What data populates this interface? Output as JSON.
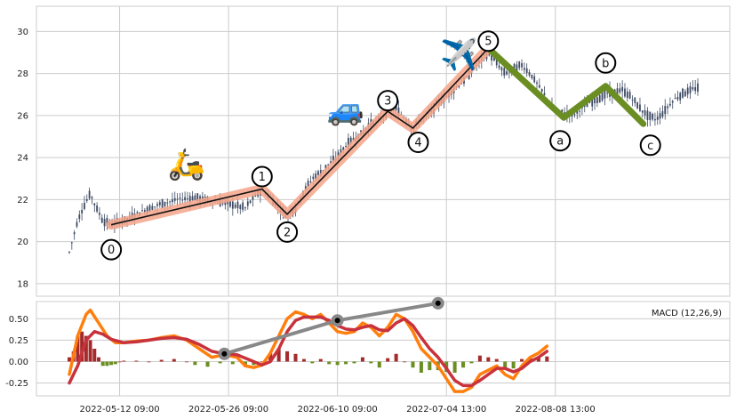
{
  "colors": {
    "grid": "#cccccc",
    "panel_bg": "#ffffff",
    "candle": "#3d4a63",
    "trend_glow": "#f4a58a",
    "trend_line": "#111111",
    "correction": "#6b8e23",
    "macd_line": "#ff7f0e",
    "signal_line": "#c8323c",
    "hist_pos": "#a52a2a",
    "hist_neg": "#6b8e23",
    "macd_trend": "#888888"
  },
  "chart_data": [
    {
      "type": "candlestick",
      "title": "",
      "xlabel": "",
      "ylabel": "",
      "ylim": [
        17.4,
        31.2
      ],
      "yticks": [
        18,
        20,
        22,
        24,
        26,
        28,
        30
      ],
      "grid": true,
      "price_series": [
        [
          0,
          19.5
        ],
        [
          2,
          21.0
        ],
        [
          3,
          21.5
        ],
        [
          5,
          22.3
        ],
        [
          6,
          21.8
        ],
        [
          8,
          21.0
        ],
        [
          10,
          20.8
        ],
        [
          14,
          21.1
        ],
        [
          18,
          21.5
        ],
        [
          22,
          21.8
        ],
        [
          26,
          22.0
        ],
        [
          30,
          22.1
        ],
        [
          34,
          21.9
        ],
        [
          38,
          21.8
        ],
        [
          42,
          21.6
        ],
        [
          44,
          22.1
        ],
        [
          46,
          22.5
        ],
        [
          48,
          22.1
        ],
        [
          50,
          21.6
        ],
        [
          52,
          21.3
        ],
        [
          54,
          21.6
        ],
        [
          56,
          22.4
        ],
        [
          58,
          23.0
        ],
        [
          60,
          23.3
        ],
        [
          62,
          23.7
        ],
        [
          64,
          24.0
        ],
        [
          66,
          24.6
        ],
        [
          68,
          24.9
        ],
        [
          70,
          25.2
        ],
        [
          72,
          25.6
        ],
        [
          74,
          25.8
        ],
        [
          76,
          26.2
        ],
        [
          78,
          26.3
        ],
        [
          80,
          25.9
        ],
        [
          82,
          25.4
        ],
        [
          84,
          25.8
        ],
        [
          86,
          26.1
        ],
        [
          88,
          26.6
        ],
        [
          90,
          26.9
        ],
        [
          92,
          27.3
        ],
        [
          94,
          27.6
        ],
        [
          96,
          28.1
        ],
        [
          98,
          28.6
        ],
        [
          100,
          29.0
        ],
        [
          102,
          28.5
        ],
        [
          104,
          28.0
        ],
        [
          106,
          28.2
        ],
        [
          108,
          28.4
        ],
        [
          110,
          28.0
        ],
        [
          112,
          27.4
        ],
        [
          114,
          26.8
        ],
        [
          116,
          26.2
        ],
        [
          118,
          26.1
        ],
        [
          120,
          26.0
        ],
        [
          122,
          26.3
        ],
        [
          124,
          26.6
        ],
        [
          126,
          26.8
        ],
        [
          128,
          27.0
        ],
        [
          130,
          27.1
        ],
        [
          132,
          27.2
        ],
        [
          134,
          26.9
        ],
        [
          136,
          26.4
        ],
        [
          138,
          26.0
        ],
        [
          140,
          25.8
        ],
        [
          142,
          26.2
        ],
        [
          144,
          26.7
        ],
        [
          146,
          27.0
        ],
        [
          148,
          27.2
        ],
        [
          150,
          27.3
        ]
      ],
      "waves": [
        {
          "label": "0",
          "x": 10,
          "y": 20.8
        },
        {
          "label": "1",
          "x": 46,
          "y": 22.5
        },
        {
          "label": "2",
          "x": 52,
          "y": 21.3
        },
        {
          "label": "3",
          "x": 76,
          "y": 26.2
        },
        {
          "label": "4",
          "x": 82,
          "y": 25.4
        },
        {
          "label": "5",
          "x": 100,
          "y": 29.2
        },
        {
          "label": "a",
          "x": 118,
          "y": 25.9
        },
        {
          "label": "b",
          "x": 128,
          "y": 27.4
        },
        {
          "label": "c",
          "x": 137,
          "y": 25.6
        }
      ],
      "icons": [
        {
          "name": "scooter-icon",
          "glyph": "🛵",
          "x": 28,
          "y": 23.2
        },
        {
          "name": "car-icon",
          "glyph": "🚙",
          "x": 66,
          "y": 25.8
        },
        {
          "name": "airplane-icon",
          "glyph": "✈️",
          "x": 93,
          "y": 28.4
        }
      ]
    },
    {
      "type": "bar+line",
      "title": "",
      "legend": "MACD (12,26,9)",
      "xlabel": "",
      "ylabel": "",
      "ylim": [
        -0.4,
        0.7
      ],
      "yticks": [
        0.5,
        0.25,
        0.0,
        -0.25
      ],
      "grid": true,
      "x_tick_labels": [
        {
          "x": 12,
          "label": "2022-05-12 09:00"
        },
        {
          "x": 38,
          "label": "2022-05-26 09:00"
        },
        {
          "x": 64,
          "label": "2022-06-10 09:00"
        },
        {
          "x": 90,
          "label": "2022-07-04 13:00"
        },
        {
          "x": 116,
          "label": "2022-08-08 13:00"
        }
      ],
      "macd_line": [
        [
          0,
          -0.15
        ],
        [
          2,
          0.3
        ],
        [
          4,
          0.55
        ],
        [
          5,
          0.6
        ],
        [
          7,
          0.45
        ],
        [
          9,
          0.3
        ],
        [
          11,
          0.22
        ],
        [
          13,
          0.22
        ],
        [
          16,
          0.24
        ],
        [
          19,
          0.25
        ],
        [
          22,
          0.28
        ],
        [
          25,
          0.3
        ],
        [
          28,
          0.25
        ],
        [
          31,
          0.15
        ],
        [
          34,
          0.05
        ],
        [
          37,
          0.08
        ],
        [
          40,
          0.05
        ],
        [
          42,
          -0.05
        ],
        [
          44,
          -0.07
        ],
        [
          46,
          -0.04
        ],
        [
          48,
          0.1
        ],
        [
          50,
          0.3
        ],
        [
          52,
          0.5
        ],
        [
          54,
          0.58
        ],
        [
          56,
          0.55
        ],
        [
          58,
          0.5
        ],
        [
          60,
          0.55
        ],
        [
          62,
          0.45
        ],
        [
          64,
          0.35
        ],
        [
          66,
          0.33
        ],
        [
          68,
          0.35
        ],
        [
          70,
          0.45
        ],
        [
          72,
          0.4
        ],
        [
          74,
          0.3
        ],
        [
          76,
          0.4
        ],
        [
          78,
          0.55
        ],
        [
          80,
          0.5
        ],
        [
          82,
          0.35
        ],
        [
          84,
          0.15
        ],
        [
          86,
          0.05
        ],
        [
          88,
          -0.05
        ],
        [
          90,
          -0.2
        ],
        [
          92,
          -0.35
        ],
        [
          94,
          -0.35
        ],
        [
          96,
          -0.3
        ],
        [
          98,
          -0.15
        ],
        [
          100,
          -0.1
        ],
        [
          102,
          -0.05
        ],
        [
          104,
          -0.15
        ],
        [
          106,
          -0.2
        ],
        [
          108,
          -0.05
        ],
        [
          110,
          0.05
        ],
        [
          112,
          0.1
        ],
        [
          114,
          0.18
        ]
      ],
      "signal_line": [
        [
          0,
          -0.25
        ],
        [
          2,
          -0.05
        ],
        [
          4,
          0.25
        ],
        [
          6,
          0.35
        ],
        [
          8,
          0.32
        ],
        [
          10,
          0.26
        ],
        [
          13,
          0.22
        ],
        [
          16,
          0.23
        ],
        [
          19,
          0.25
        ],
        [
          22,
          0.27
        ],
        [
          25,
          0.28
        ],
        [
          28,
          0.26
        ],
        [
          31,
          0.2
        ],
        [
          34,
          0.12
        ],
        [
          37,
          0.09
        ],
        [
          40,
          0.08
        ],
        [
          43,
          0.02
        ],
        [
          46,
          -0.04
        ],
        [
          48,
          0.0
        ],
        [
          50,
          0.15
        ],
        [
          52,
          0.35
        ],
        [
          54,
          0.48
        ],
        [
          56,
          0.52
        ],
        [
          58,
          0.52
        ],
        [
          60,
          0.52
        ],
        [
          62,
          0.48
        ],
        [
          64,
          0.42
        ],
        [
          66,
          0.38
        ],
        [
          68,
          0.37
        ],
        [
          70,
          0.4
        ],
        [
          72,
          0.42
        ],
        [
          74,
          0.37
        ],
        [
          76,
          0.36
        ],
        [
          78,
          0.45
        ],
        [
          80,
          0.5
        ],
        [
          82,
          0.42
        ],
        [
          84,
          0.28
        ],
        [
          86,
          0.15
        ],
        [
          88,
          0.05
        ],
        [
          90,
          -0.08
        ],
        [
          92,
          -0.22
        ],
        [
          94,
          -0.28
        ],
        [
          96,
          -0.28
        ],
        [
          98,
          -0.22
        ],
        [
          100,
          -0.15
        ],
        [
          102,
          -0.08
        ],
        [
          104,
          -0.08
        ],
        [
          106,
          -0.12
        ],
        [
          108,
          -0.08
        ],
        [
          110,
          0.0
        ],
        [
          112,
          0.05
        ],
        [
          114,
          0.12
        ]
      ],
      "histogram": [
        [
          0,
          0.05
        ],
        [
          1,
          0.12
        ],
        [
          2,
          0.3
        ],
        [
          3,
          0.35
        ],
        [
          4,
          0.3
        ],
        [
          5,
          0.25
        ],
        [
          6,
          0.15
        ],
        [
          7,
          0.05
        ],
        [
          8,
          -0.05
        ],
        [
          9,
          -0.05
        ],
        [
          10,
          -0.04
        ],
        [
          11,
          -0.03
        ],
        [
          12,
          0.0
        ],
        [
          13,
          0.01
        ],
        [
          16,
          0.01
        ],
        [
          19,
          0.0
        ],
        [
          22,
          0.02
        ],
        [
          25,
          0.03
        ],
        [
          28,
          0.0
        ],
        [
          30,
          -0.04
        ],
        [
          33,
          -0.06
        ],
        [
          36,
          -0.02
        ],
        [
          39,
          -0.03
        ],
        [
          42,
          -0.06
        ],
        [
          44,
          -0.04
        ],
        [
          46,
          0.0
        ],
        [
          48,
          0.1
        ],
        [
          50,
          0.15
        ],
        [
          52,
          0.12
        ],
        [
          54,
          0.09
        ],
        [
          56,
          0.03
        ],
        [
          58,
          -0.02
        ],
        [
          60,
          0.03
        ],
        [
          62,
          -0.03
        ],
        [
          64,
          -0.04
        ],
        [
          66,
          -0.03
        ],
        [
          68,
          -0.02
        ],
        [
          70,
          0.05
        ],
        [
          72,
          -0.02
        ],
        [
          74,
          -0.07
        ],
        [
          76,
          0.04
        ],
        [
          78,
          0.09
        ],
        [
          80,
          0.0
        ],
        [
          82,
          -0.07
        ],
        [
          84,
          -0.13
        ],
        [
          86,
          -0.1
        ],
        [
          88,
          -0.1
        ],
        [
          90,
          -0.12
        ],
        [
          92,
          -0.13
        ],
        [
          94,
          -0.07
        ],
        [
          96,
          -0.02
        ],
        [
          98,
          0.07
        ],
        [
          100,
          0.05
        ],
        [
          102,
          0.03
        ],
        [
          104,
          -0.07
        ],
        [
          106,
          -0.08
        ],
        [
          108,
          0.03
        ],
        [
          110,
          0.05
        ],
        [
          112,
          0.05
        ],
        [
          114,
          0.06
        ]
      ],
      "trend_points": [
        {
          "x": 37,
          "y": 0.09
        },
        {
          "x": 64,
          "y": 0.48
        },
        {
          "x": 88,
          "y": 0.68
        }
      ]
    }
  ]
}
